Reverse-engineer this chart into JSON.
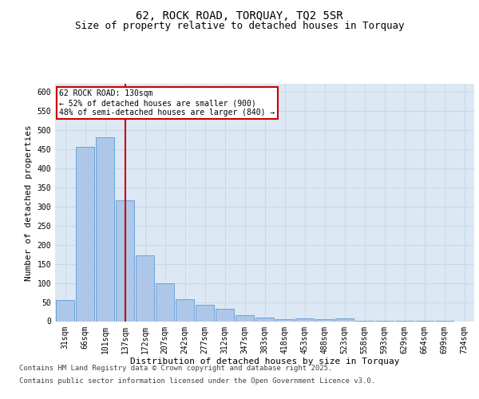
{
  "title": "62, ROCK ROAD, TORQUAY, TQ2 5SR",
  "subtitle": "Size of property relative to detached houses in Torquay",
  "xlabel": "Distribution of detached houses by size in Torquay",
  "ylabel": "Number of detached properties",
  "categories": [
    "31sqm",
    "66sqm",
    "101sqm",
    "137sqm",
    "172sqm",
    "207sqm",
    "242sqm",
    "277sqm",
    "312sqm",
    "347sqm",
    "383sqm",
    "418sqm",
    "453sqm",
    "488sqm",
    "523sqm",
    "558sqm",
    "593sqm",
    "629sqm",
    "664sqm",
    "699sqm",
    "734sqm"
  ],
  "values": [
    55,
    455,
    480,
    315,
    172,
    100,
    58,
    42,
    33,
    15,
    10,
    5,
    7,
    5,
    7,
    1,
    1,
    1,
    1,
    1,
    0
  ],
  "bar_color": "#aec6e8",
  "bar_edge_color": "#5b9bd5",
  "grid_color": "#c8d8e8",
  "background_color": "#dce8f4",
  "annotation_box_text": "62 ROCK ROAD: 130sqm\n← 52% of detached houses are smaller (900)\n48% of semi-detached houses are larger (840) →",
  "annotation_box_color": "#ffffff",
  "annotation_box_edge_color": "#cc0000",
  "vline_x_index": 3,
  "vline_color": "#cc0000",
  "ylim": [
    0,
    620
  ],
  "yticks": [
    0,
    50,
    100,
    150,
    200,
    250,
    300,
    350,
    400,
    450,
    500,
    550,
    600
  ],
  "footer_line1": "Contains HM Land Registry data © Crown copyright and database right 2025.",
  "footer_line2": "Contains public sector information licensed under the Open Government Licence v3.0.",
  "title_fontsize": 10,
  "subtitle_fontsize": 9,
  "axis_label_fontsize": 8,
  "tick_fontsize": 7,
  "footer_fontsize": 6.5
}
